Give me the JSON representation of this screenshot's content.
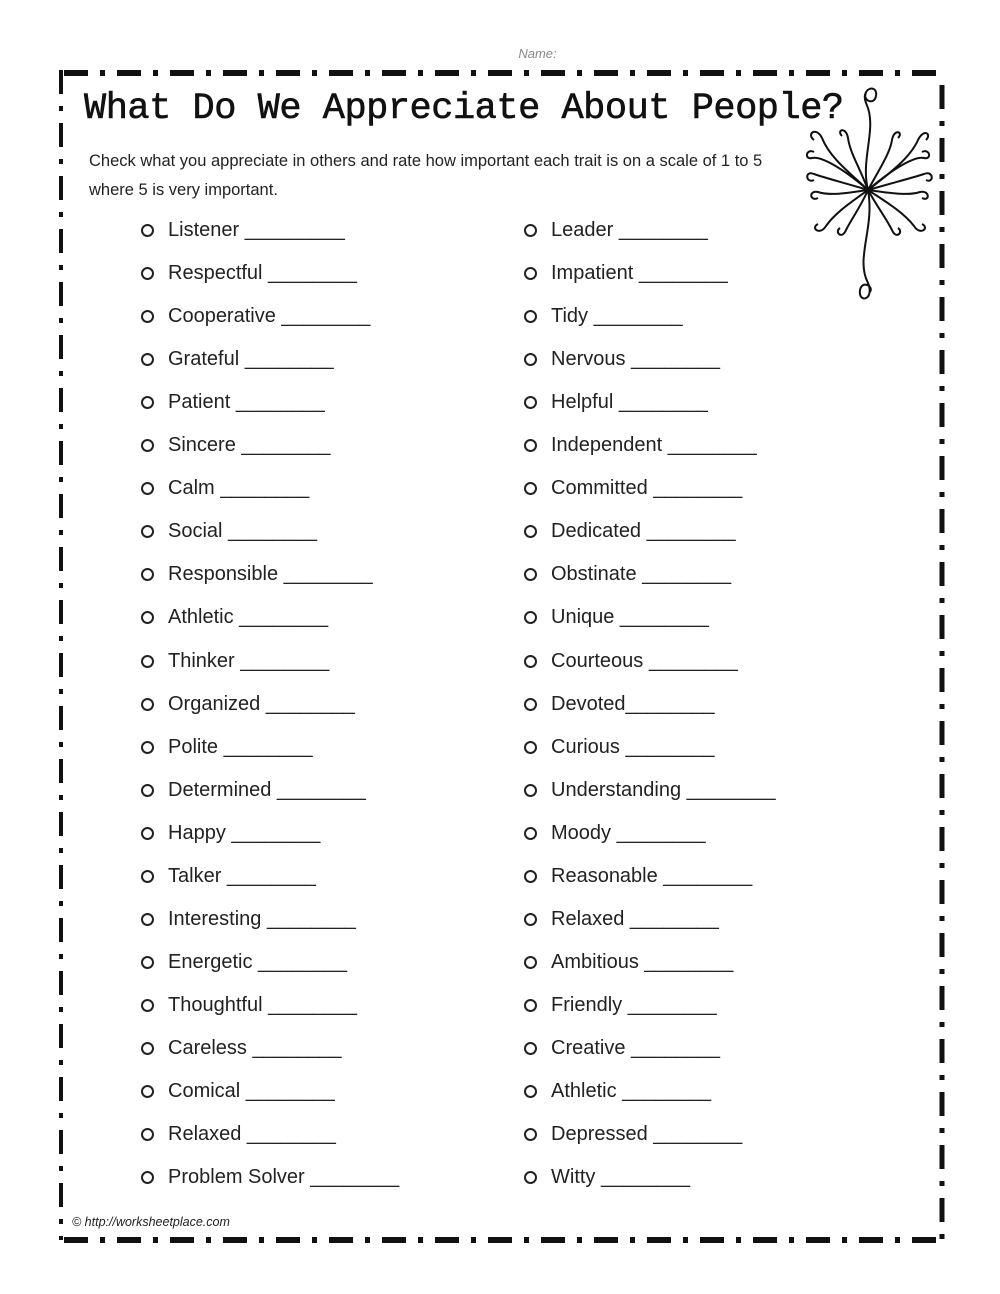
{
  "header": {
    "name_label": "Name:"
  },
  "title": "What Do We Appreciate About People?",
  "instructions": "Check what you appreciate in others and rate how important each trait is on a scale of 1 to 5 where 5 is very important.",
  "left_items": [
    "Listener _________",
    "Respectful ________",
    "Cooperative ________",
    "Grateful ________",
    "Patient ________",
    "Sincere ________",
    "Calm ________",
    "Social ________",
    "Responsible ________",
    "Athletic ________",
    "Thinker ________",
    "Organized ________",
    "Polite ________",
    "Determined ________",
    "Happy ________",
    "Talker ________",
    "Interesting ________",
    "Energetic ________",
    "Thoughtful ________",
    "Careless ________",
    "Comical ________",
    "Relaxed ________",
    "Problem Solver ________"
  ],
  "right_items": [
    "Leader ________",
    "Impatient ________",
    "Tidy ________",
    "Nervous ________",
    "Helpful ________",
    "Independent ________",
    "Committed ________",
    "Dedicated ________",
    "Obstinate ________",
    "Unique ________",
    "Courteous ________",
    "Devoted________",
    "Curious ________",
    "Understanding ________",
    "Moody ________",
    "Reasonable ________",
    "Relaxed ________",
    "Ambitious ________",
    "Friendly ________",
    "Creative ________",
    "Athletic ________",
    "Depressed ________",
    "Witty ________"
  ],
  "footer": "© http://worksheetplace.com",
  "decoration": {
    "icon": "swirl-flower-icon"
  }
}
